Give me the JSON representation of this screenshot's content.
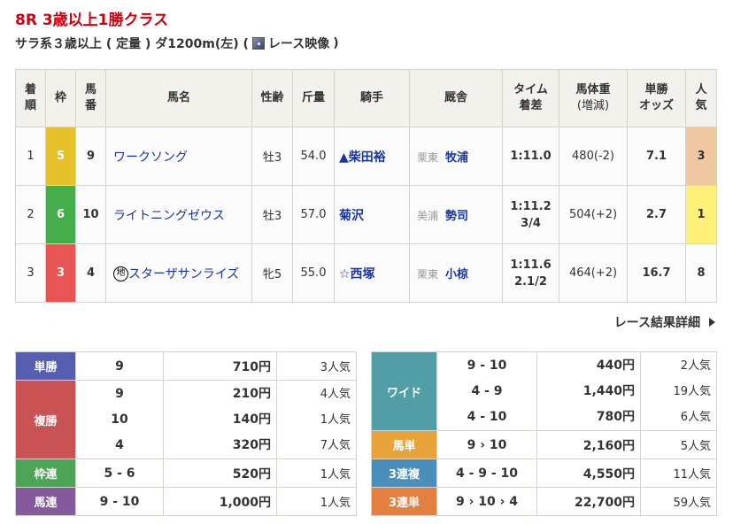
{
  "header": {
    "title": "8R 3歳以上1勝クラス",
    "conditions": "サラ系３歳以上 ( 定量 ) ダ1200m(左) (",
    "video_label": "レース映像",
    "close_paren": ")"
  },
  "results": {
    "columns": [
      "着順",
      "枠",
      "馬番",
      "馬名",
      "性齢",
      "斤量",
      "騎手",
      "厩舎",
      "タイム着差",
      "馬体重(増減)",
      "単勝オッズ",
      "人気"
    ],
    "headers": {
      "rank": [
        "着",
        "順"
      ],
      "waku": "枠",
      "num": [
        "馬",
        "番"
      ],
      "name": "馬名",
      "sexage": "性齢",
      "weight": "斤量",
      "jockey": "騎手",
      "trainer": "厩舎",
      "time": [
        "タイム",
        "着差"
      ],
      "body": [
        "馬体重",
        "(増減)"
      ],
      "odds": [
        "単勝",
        "オッズ"
      ],
      "pop": [
        "人",
        "気"
      ]
    },
    "rows": [
      {
        "rank": "1",
        "waku": "5",
        "waku_color": "#e6c22a",
        "num": "9",
        "badge": "",
        "name": "ワークソング",
        "sexage": "牡3",
        "weight": "54.0",
        "jockey": "▲柴田裕",
        "region": "栗東",
        "trainer": "牧浦",
        "time": "1:11.0",
        "margin": "",
        "body": "480(-2)",
        "odds": "7.1",
        "pop": "3",
        "pop_color": "#f0c8a0"
      },
      {
        "rank": "2",
        "waku": "6",
        "waku_color": "#46ad4b",
        "num": "10",
        "badge": "",
        "name": "ライトニングゼウス",
        "sexage": "牡3",
        "weight": "57.0",
        "jockey": "菊沢",
        "region": "美浦",
        "trainer": "勢司",
        "time": "1:11.2",
        "margin": "3/4",
        "body": "504(+2)",
        "odds": "2.7",
        "pop": "1",
        "pop_color": "#fff07a"
      },
      {
        "rank": "3",
        "waku": "3",
        "waku_color": "#e85555",
        "num": "4",
        "badge": "地",
        "name": "スターザサンライズ",
        "sexage": "牝5",
        "weight": "55.0",
        "jockey": "☆西塚",
        "region": "栗東",
        "trainer": "小椋",
        "time": "1:11.6",
        "margin": "2.1/2",
        "body": "464(+2)",
        "odds": "16.7",
        "pop": "8",
        "pop_color": ""
      }
    ]
  },
  "detail_link": "レース結果詳細",
  "payouts_left": [
    {
      "label": "単勝",
      "color": "#565eb0",
      "items": [
        {
          "combo": "9",
          "pay": "710円",
          "pop": "3人気"
        }
      ]
    },
    {
      "label": "複勝",
      "color": "#c85254",
      "items": [
        {
          "combo": "9",
          "pay": "210円",
          "pop": "4人気"
        },
        {
          "combo": "10",
          "pay": "140円",
          "pop": "1人気"
        },
        {
          "combo": "4",
          "pay": "320円",
          "pop": "7人気"
        }
      ]
    },
    {
      "label": "枠連",
      "color": "#4ea456",
      "items": [
        {
          "combo": "5 - 6",
          "pay": "520円",
          "pop": "1人気"
        }
      ]
    },
    {
      "label": "馬連",
      "color": "#845a9c",
      "items": [
        {
          "combo": "9 - 10",
          "pay": "1,000円",
          "pop": "1人気"
        }
      ]
    }
  ],
  "payouts_right": [
    {
      "label": "ワイド",
      "color": "#529ea6",
      "items": [
        {
          "combo": "9 - 10",
          "pay": "440円",
          "pop": "2人気"
        },
        {
          "combo": "4 - 9",
          "pay": "1,440円",
          "pop": "19人気"
        },
        {
          "combo": "4 - 10",
          "pay": "780円",
          "pop": "6人気"
        }
      ]
    },
    {
      "label": "馬単",
      "color": "#e8a43a",
      "items": [
        {
          "combo": "9 › 10",
          "pay": "2,160円",
          "pop": "5人気"
        }
      ]
    },
    {
      "label": "3連複",
      "color": "#4a8fba",
      "items": [
        {
          "combo": "4 - 9 - 10",
          "pay": "4,550円",
          "pop": "11人気"
        }
      ]
    },
    {
      "label": "3連単",
      "color": "#e38040",
      "items": [
        {
          "combo": "9 › 10 › 4",
          "pay": "22,700円",
          "pop": "59人気"
        }
      ]
    }
  ]
}
